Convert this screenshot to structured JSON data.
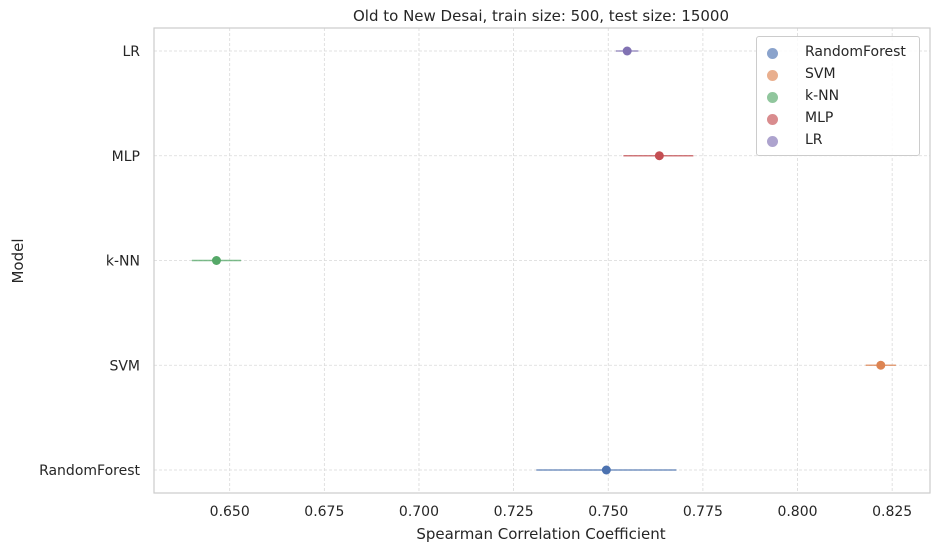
{
  "chart_data": {
    "type": "scatter",
    "title": "Old to New Desai, train size: 500, test size: 15000",
    "xlabel": "Spearman Correlation Coefficient",
    "ylabel": "Model",
    "categories": [
      "RandomForest",
      "SVM",
      "k-NN",
      "MLP",
      "LR"
    ],
    "xlim": [
      0.63,
      0.835
    ],
    "xticks": [
      0.65,
      0.675,
      0.7,
      0.725,
      0.75,
      0.775,
      0.8,
      0.825
    ],
    "xtick_labels": [
      "0.650",
      "0.675",
      "0.700",
      "0.725",
      "0.750",
      "0.775",
      "0.800",
      "0.825"
    ],
    "grid": true,
    "legend_placement": "top-right",
    "series": [
      {
        "name": "RandomForest",
        "category": "RandomForest",
        "mean": 0.7495,
        "err_low": 0.731,
        "err_high": 0.768,
        "color": "#4c72b0"
      },
      {
        "name": "SVM",
        "category": "SVM",
        "mean": 0.822,
        "err_low": 0.818,
        "err_high": 0.826,
        "color": "#dd8452"
      },
      {
        "name": "k-NN",
        "category": "k-NN",
        "mean": 0.6465,
        "err_low": 0.64,
        "err_high": 0.653,
        "color": "#55a868"
      },
      {
        "name": "MLP",
        "category": "MLP",
        "mean": 0.7635,
        "err_low": 0.754,
        "err_high": 0.7725,
        "color": "#c44e52"
      },
      {
        "name": "LR",
        "category": "LR",
        "mean": 0.755,
        "err_low": 0.752,
        "err_high": 0.758,
        "color": "#8172b3"
      }
    ]
  }
}
